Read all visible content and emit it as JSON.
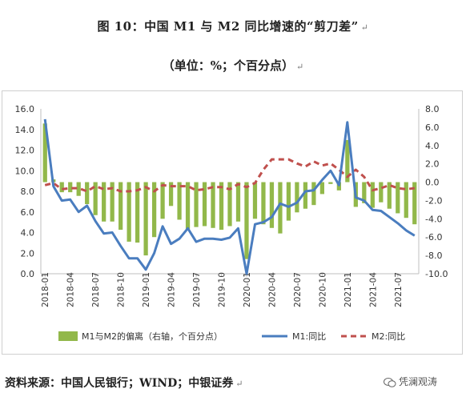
{
  "title": "图 10：中国 M1 与 M2 同比增速的“剪刀差”",
  "subtitle": "（单位：%；个百分点）",
  "return_mark": "↵",
  "source": "资料来源：中国人民银行；WIND；中银证券",
  "watermark": "凭澜观涛",
  "colors": {
    "bar": "#92b84a",
    "m1": "#4a7dbf",
    "m2": "#c0504d",
    "axis": "#bfbfbf"
  },
  "chart_data": {
    "type": "bar+line",
    "title": "",
    "xlabel": "",
    "ylabel": "",
    "y_left": {
      "lim": [
        0,
        16
      ],
      "ticks": [
        "0.0",
        "2.0",
        "4.0",
        "6.0",
        "8.0",
        "10.0",
        "12.0",
        "14.0",
        "16.0"
      ]
    },
    "y_right": {
      "lim": [
        -10,
        8
      ],
      "ticks": [
        "-10.0",
        "-8.0",
        "-6.0",
        "-4.0",
        "-2.0",
        "0.0",
        "2.0",
        "4.0",
        "6.0",
        "8.0"
      ]
    },
    "x_tick_labels": [
      "2018-01",
      "2018-04",
      "2018-07",
      "2018-10",
      "2019-01",
      "2019-04",
      "2019-07",
      "2019-10",
      "2020-01",
      "2020-04",
      "2020-07",
      "2020-10",
      "2021-01",
      "2021-04",
      "2021-07"
    ],
    "x_tick_step": 3,
    "months": [
      "2018-01",
      "2018-02",
      "2018-03",
      "2018-04",
      "2018-05",
      "2018-06",
      "2018-07",
      "2018-08",
      "2018-09",
      "2018-10",
      "2018-11",
      "2018-12",
      "2019-01",
      "2019-02",
      "2019-03",
      "2019-04",
      "2019-05",
      "2019-06",
      "2019-07",
      "2019-08",
      "2019-09",
      "2019-10",
      "2019-11",
      "2019-12",
      "2020-01",
      "2020-02",
      "2020-03",
      "2020-04",
      "2020-05",
      "2020-06",
      "2020-07",
      "2020-08",
      "2020-09",
      "2020-10",
      "2020-11",
      "2020-12",
      "2021-01",
      "2021-02",
      "2021-03",
      "2021-04",
      "2021-05",
      "2021-06",
      "2021-07",
      "2021-08",
      "2021-09"
    ],
    "legend_position": "bottom",
    "series": [
      {
        "name": "M1与M2的偏离（右轴，个百分点）",
        "kind": "bar",
        "axis": "right",
        "values": [
          6.4,
          0.3,
          -1.1,
          -1.1,
          -1.5,
          -2.4,
          -3.6,
          -4.3,
          -4.3,
          -5.2,
          -6.5,
          -6.6,
          -8.0,
          -6.0,
          -4.0,
          -2.6,
          -4.1,
          -5.1,
          -4.9,
          -4.8,
          -5.0,
          -5.2,
          -4.8,
          -4.3,
          -8.4,
          -4.0,
          -4.6,
          -5.0,
          -5.6,
          -4.2,
          -3.3,
          -2.9,
          -2.5,
          -1.3,
          -0.2,
          -0.9,
          4.6,
          -2.7,
          -2.3,
          -2.8,
          -2.2,
          -2.9,
          -3.4,
          -3.9,
          -4.6
        ]
      },
      {
        "name": "M1:同比",
        "kind": "line",
        "axis": "left",
        "values": [
          15.0,
          8.5,
          7.1,
          7.2,
          6.0,
          6.6,
          5.1,
          3.9,
          4.0,
          2.7,
          1.5,
          1.5,
          0.4,
          2.0,
          4.6,
          2.9,
          3.4,
          4.4,
          3.1,
          3.4,
          3.4,
          3.3,
          3.5,
          4.4,
          0.0,
          4.8,
          5.0,
          5.5,
          6.8,
          6.5,
          6.9,
          8.0,
          8.1,
          9.1,
          10.0,
          8.6,
          14.7,
          7.4,
          7.1,
          6.2,
          6.1,
          5.5,
          4.9,
          4.2,
          3.7
        ]
      },
      {
        "name": "M2:同比",
        "kind": "line",
        "dashed": true,
        "axis": "left",
        "values": [
          8.6,
          8.8,
          8.2,
          8.3,
          8.3,
          8.0,
          8.5,
          8.2,
          8.3,
          8.0,
          8.0,
          8.1,
          8.4,
          8.0,
          8.6,
          8.5,
          8.5,
          8.5,
          8.1,
          8.2,
          8.4,
          8.4,
          8.2,
          8.7,
          8.4,
          8.8,
          10.1,
          11.1,
          11.1,
          11.1,
          10.7,
          10.4,
          10.9,
          10.5,
          10.7,
          10.1,
          9.4,
          10.1,
          9.4,
          8.1,
          8.3,
          8.6,
          8.3,
          8.2,
          8.3
        ]
      }
    ]
  }
}
